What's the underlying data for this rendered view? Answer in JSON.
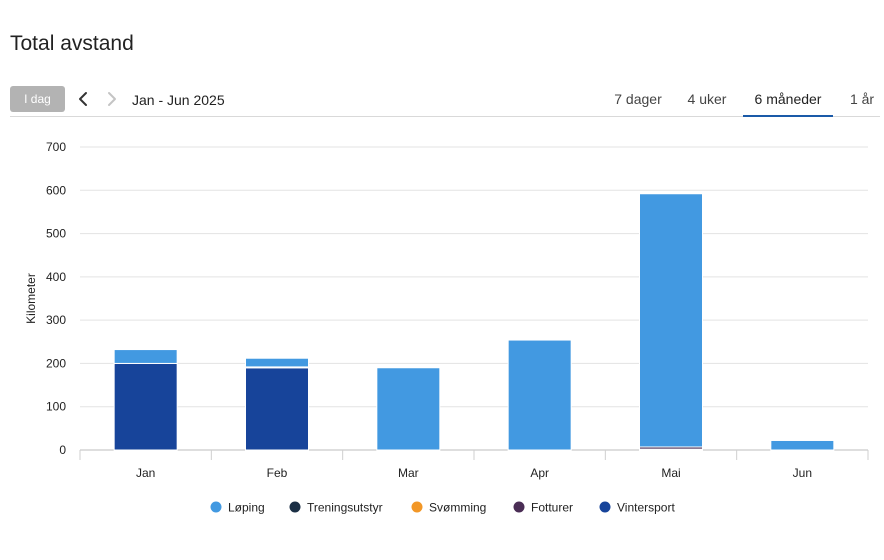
{
  "page": {
    "title": "Total avstand"
  },
  "toolbar": {
    "today_label": "I dag",
    "date_range": "Jan - Jun 2025",
    "tabs": [
      {
        "label": "7 dager",
        "active": false
      },
      {
        "label": "4 uker",
        "active": false
      },
      {
        "label": "6 måneder",
        "active": true
      },
      {
        "label": "1 år",
        "active": false
      }
    ]
  },
  "colors": {
    "accent": "#1a5aa8",
    "today_button": "#b3b3b3"
  },
  "chart_data": {
    "type": "bar",
    "stacked": true,
    "ylabel": "Kilometer",
    "xlabel": "",
    "ylim": [
      0,
      700
    ],
    "yticks": [
      0,
      100,
      200,
      300,
      400,
      500,
      600,
      700
    ],
    "grid": true,
    "legend_position": "bottom",
    "categories": [
      "Jan",
      "Feb",
      "Mar",
      "Apr",
      "Mai",
      "Jun"
    ],
    "series": [
      {
        "name": "Løping",
        "color": "#4299e1",
        "values": [
          32,
          20,
          190,
          254,
          585,
          22
        ]
      },
      {
        "name": "Treningsutstyr",
        "color": "#1b2f45",
        "values": [
          0,
          2,
          0,
          0,
          0,
          0
        ]
      },
      {
        "name": "Svømming",
        "color": "#f29727",
        "values": [
          0,
          0,
          0,
          0,
          0,
          0
        ]
      },
      {
        "name": "Fotturer",
        "color": "#4a2d55",
        "values": [
          0,
          0,
          0,
          0,
          5,
          0
        ]
      },
      {
        "name": "Vintersport",
        "color": "#17449a",
        "values": [
          200,
          190,
          0,
          0,
          2,
          0
        ]
      }
    ]
  }
}
